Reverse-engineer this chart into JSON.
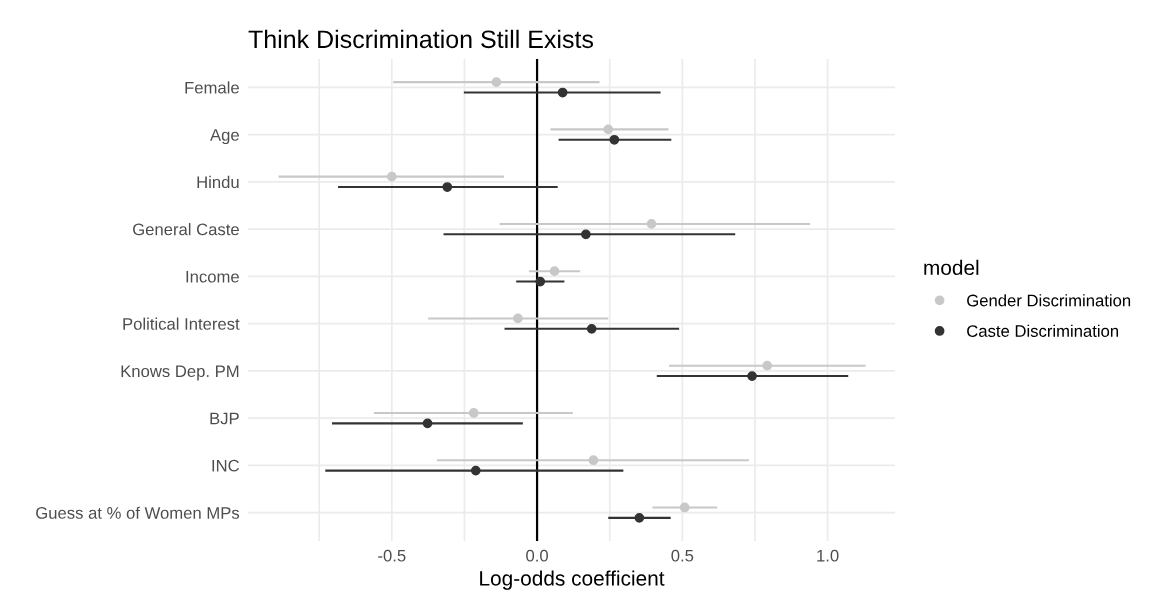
{
  "chart_data": {
    "type": "scatter",
    "title": "Think Discrimination Still Exists",
    "xlabel": "Log-odds coefficient",
    "legend_title": "model",
    "categories": [
      "Female",
      "Age",
      "Hindu",
      "General Caste",
      "Income",
      "Political Interest",
      "Knows Dep. PM",
      "BJP",
      "INC",
      "Guess at % of Women MPs"
    ],
    "orientation": "horizontal",
    "series": [
      {
        "name": "Gender Discrimination",
        "color": "#c8c8c8",
        "values": [
          -0.14,
          0.245,
          -0.5,
          0.394,
          0.06,
          -0.066,
          0.792,
          -0.218,
          0.194,
          0.508
        ],
        "errors": [
          [
            -0.495,
            0.215
          ],
          [
            0.046,
            0.452
          ],
          [
            -0.89,
            -0.114
          ],
          [
            -0.129,
            0.94
          ],
          [
            -0.028,
            0.148
          ],
          [
            -0.375,
            0.245
          ],
          [
            0.454,
            1.131
          ],
          [
            -0.562,
            0.123
          ],
          [
            -0.345,
            0.729
          ],
          [
            0.397,
            0.62
          ]
        ]
      },
      {
        "name": "Caste Discrimination",
        "color": "#333333",
        "values": [
          0.088,
          0.266,
          -0.309,
          0.168,
          0.011,
          0.188,
          0.74,
          -0.377,
          -0.211,
          0.352
        ],
        "errors": [
          [
            -0.252,
            0.425
          ],
          [
            0.074,
            0.462
          ],
          [
            -0.685,
            0.071
          ],
          [
            -0.322,
            0.682
          ],
          [
            -0.072,
            0.094
          ],
          [
            -0.112,
            0.489
          ],
          [
            0.412,
            1.071
          ],
          [
            -0.706,
            -0.049
          ],
          [
            -0.729,
            0.297
          ],
          [
            0.245,
            0.46
          ]
        ]
      }
    ],
    "xlim": [
      -0.995,
      1.232
    ],
    "xticks": [
      {
        "value": -0.75,
        "label": null
      },
      -0.5,
      {
        "value": -0.25,
        "label": null
      },
      {
        "value": 0.0,
        "label": "0.0"
      },
      {
        "value": 0.25,
        "label": null
      },
      0.5,
      {
        "value": 0.75,
        "label": null
      },
      {
        "value": 1.0,
        "label": "1.0"
      }
    ],
    "ref_lines": [
      {
        "axis": "x",
        "value": 0,
        "color": "#000000",
        "line_style": "solid"
      }
    ],
    "grid": true,
    "legend": "right",
    "marker": "circle"
  }
}
